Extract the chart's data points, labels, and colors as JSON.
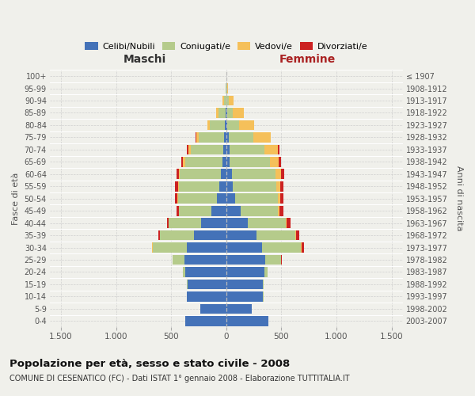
{
  "age_groups": [
    "0-4",
    "5-9",
    "10-14",
    "15-19",
    "20-24",
    "25-29",
    "30-34",
    "35-39",
    "40-44",
    "45-49",
    "50-54",
    "55-59",
    "60-64",
    "65-69",
    "70-74",
    "75-79",
    "80-84",
    "85-89",
    "90-94",
    "95-99",
    "100+"
  ],
  "birth_years": [
    "2003-2007",
    "1998-2002",
    "1993-1997",
    "1988-1992",
    "1983-1987",
    "1978-1982",
    "1973-1977",
    "1968-1972",
    "1963-1967",
    "1958-1962",
    "1953-1957",
    "1948-1952",
    "1943-1947",
    "1938-1942",
    "1933-1937",
    "1928-1932",
    "1923-1927",
    "1918-1922",
    "1913-1917",
    "1908-1912",
    "≤ 1907"
  ],
  "males_celibi": [
    375,
    235,
    355,
    350,
    375,
    380,
    355,
    295,
    225,
    135,
    85,
    65,
    50,
    35,
    30,
    20,
    10,
    5,
    2,
    0,
    0
  ],
  "males_coniugati": [
    0,
    0,
    2,
    5,
    22,
    105,
    315,
    305,
    295,
    295,
    350,
    365,
    370,
    340,
    295,
    230,
    140,
    65,
    20,
    5,
    1
  ],
  "males_vedovi": [
    0,
    0,
    0,
    0,
    0,
    2,
    2,
    2,
    2,
    3,
    6,
    9,
    12,
    18,
    22,
    22,
    22,
    22,
    12,
    2,
    0
  ],
  "males_divorziati": [
    0,
    0,
    0,
    0,
    0,
    2,
    5,
    12,
    17,
    17,
    22,
    27,
    22,
    15,
    10,
    5,
    0,
    0,
    0,
    0,
    0
  ],
  "females_nubili": [
    382,
    232,
    335,
    335,
    345,
    355,
    325,
    272,
    192,
    132,
    82,
    62,
    52,
    32,
    30,
    22,
    10,
    5,
    2,
    0,
    0
  ],
  "females_coniugate": [
    0,
    0,
    2,
    5,
    27,
    142,
    355,
    355,
    345,
    335,
    385,
    395,
    395,
    365,
    315,
    225,
    105,
    52,
    22,
    5,
    1
  ],
  "females_vedove": [
    0,
    0,
    0,
    0,
    2,
    3,
    5,
    5,
    12,
    17,
    22,
    32,
    52,
    82,
    125,
    155,
    135,
    105,
    45,
    12,
    2
  ],
  "females_divorziate": [
    0,
    0,
    0,
    0,
    2,
    5,
    17,
    32,
    32,
    32,
    27,
    32,
    27,
    15,
    10,
    5,
    0,
    0,
    0,
    0,
    0
  ],
  "color_celibi": "#4472b8",
  "color_coniugati": "#b5cb8b",
  "color_vedovi": "#f5c05a",
  "color_divorziati": "#cc2222",
  "bg_color": "#f0f0eb",
  "grid_color": "#cccccc",
  "center_line_color": "#bbbbbb",
  "title": "Popolazione per età, sesso e stato civile - 2008",
  "subtitle": "COMUNE DI CESENATICO (FC) - Dati ISTAT 1° gennaio 2008 - Elaborazione TUTTITALIA.IT",
  "label_maschi": "Maschi",
  "label_femmine": "Femmine",
  "ylabel_left": "Fasce di età",
  "ylabel_right": "Anni di nascita",
  "legend_labels": [
    "Celibi/Nubili",
    "Coniugati/e",
    "Vedovi/e",
    "Divorziati/e"
  ],
  "xtick_positions": [
    -1500,
    -1000,
    -500,
    0,
    500,
    1000,
    1500
  ],
  "xtick_labels": [
    "1.500",
    "1.000",
    "500",
    "0",
    "500",
    "1.000",
    "1.500"
  ],
  "xlim": 1600,
  "bar_height": 0.82
}
